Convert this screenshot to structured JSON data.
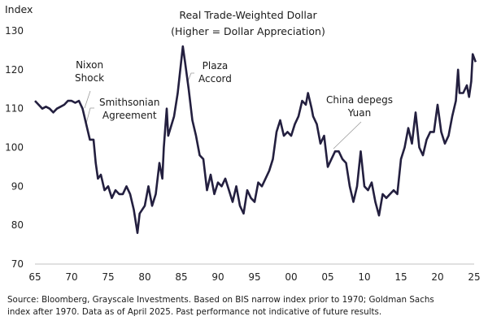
{
  "chart_data": {
    "type": "line",
    "title": "Real Trade-Weighted Dollar",
    "subtitle": "(Higher = Dollar Appreciation)",
    "ylabel": "Index",
    "xlabel": "",
    "ylim": [
      70,
      130
    ],
    "xlim": [
      1965,
      2025
    ],
    "yticks": [
      "70",
      "80",
      "90",
      "100",
      "110",
      "120",
      "130"
    ],
    "xticks": [
      "65",
      "70",
      "75",
      "80",
      "85",
      "90",
      "95",
      "00",
      "05",
      "10",
      "15",
      "20",
      "25"
    ],
    "grid": false,
    "line_color": "#231f3f",
    "series": [
      {
        "points": [
          [
            1965.0,
            112
          ],
          [
            1965.5,
            111
          ],
          [
            1966.0,
            110
          ],
          [
            1966.5,
            110.5
          ],
          [
            1967.0,
            110
          ],
          [
            1967.5,
            109
          ],
          [
            1968.0,
            110
          ],
          [
            1968.5,
            110.5
          ],
          [
            1969.0,
            111
          ],
          [
            1969.5,
            112
          ],
          [
            1970.0,
            112
          ],
          [
            1970.5,
            111.5
          ],
          [
            1971.0,
            112
          ],
          [
            1971.5,
            110
          ],
          [
            1972.0,
            106
          ],
          [
            1972.5,
            102
          ],
          [
            1973.0,
            102
          ],
          [
            1973.3,
            96
          ],
          [
            1973.6,
            92
          ],
          [
            1974.0,
            93
          ],
          [
            1974.5,
            89
          ],
          [
            1975.0,
            90
          ],
          [
            1975.5,
            87
          ],
          [
            1976.0,
            89
          ],
          [
            1976.5,
            88
          ],
          [
            1977.0,
            88
          ],
          [
            1977.5,
            90
          ],
          [
            1978.0,
            88
          ],
          [
            1978.5,
            84
          ],
          [
            1979.0,
            78
          ],
          [
            1979.3,
            83
          ],
          [
            1980.0,
            85
          ],
          [
            1980.5,
            90
          ],
          [
            1981.0,
            85
          ],
          [
            1981.5,
            88
          ],
          [
            1982.0,
            96
          ],
          [
            1982.4,
            92
          ],
          [
            1982.6,
            100
          ],
          [
            1983.0,
            110
          ],
          [
            1983.2,
            103
          ],
          [
            1984.0,
            108
          ],
          [
            1984.5,
            114
          ],
          [
            1985.2,
            126
          ],
          [
            1985.5,
            122
          ],
          [
            1986.0,
            115
          ],
          [
            1986.5,
            107
          ],
          [
            1987.0,
            103
          ],
          [
            1987.5,
            98
          ],
          [
            1988.0,
            97
          ],
          [
            1988.5,
            89
          ],
          [
            1989.0,
            93
          ],
          [
            1989.5,
            88
          ],
          [
            1990.0,
            91
          ],
          [
            1990.5,
            90
          ],
          [
            1991.0,
            92
          ],
          [
            1991.5,
            89
          ],
          [
            1992.0,
            86
          ],
          [
            1992.5,
            90
          ],
          [
            1993.0,
            85
          ],
          [
            1993.5,
            83
          ],
          [
            1994.0,
            89
          ],
          [
            1994.5,
            87
          ],
          [
            1995.0,
            86
          ],
          [
            1995.5,
            91
          ],
          [
            1996.0,
            90
          ],
          [
            1996.5,
            92
          ],
          [
            1997.0,
            94
          ],
          [
            1997.5,
            97
          ],
          [
            1998.0,
            104
          ],
          [
            1998.5,
            107
          ],
          [
            1999.0,
            103
          ],
          [
            1999.5,
            104
          ],
          [
            2000.0,
            103
          ],
          [
            2000.5,
            106
          ],
          [
            2001.0,
            108
          ],
          [
            2001.5,
            112
          ],
          [
            2002.0,
            111
          ],
          [
            2002.3,
            114
          ],
          [
            2002.8,
            110
          ],
          [
            2003.0,
            108
          ],
          [
            2003.5,
            106
          ],
          [
            2004.0,
            101
          ],
          [
            2004.5,
            103
          ],
          [
            2005.0,
            95
          ],
          [
            2005.5,
            97
          ],
          [
            2006.0,
            99
          ],
          [
            2006.5,
            99
          ],
          [
            2007.0,
            97
          ],
          [
            2007.5,
            96
          ],
          [
            2008.0,
            90
          ],
          [
            2008.5,
            86
          ],
          [
            2009.0,
            90
          ],
          [
            2009.5,
            99
          ],
          [
            2010.0,
            90
          ],
          [
            2010.5,
            89
          ],
          [
            2011.0,
            91
          ],
          [
            2011.5,
            86
          ],
          [
            2012.0,
            82.5
          ],
          [
            2012.5,
            88
          ],
          [
            2013.0,
            87
          ],
          [
            2013.5,
            88
          ],
          [
            2014.0,
            89
          ],
          [
            2014.5,
            88
          ],
          [
            2015.0,
            97
          ],
          [
            2015.5,
            100
          ],
          [
            2016.0,
            105
          ],
          [
            2016.5,
            101
          ],
          [
            2017.0,
            109
          ],
          [
            2017.5,
            100
          ],
          [
            2018.0,
            98
          ],
          [
            2018.5,
            102
          ],
          [
            2019.0,
            104
          ],
          [
            2019.5,
            104
          ],
          [
            2020.0,
            111
          ],
          [
            2020.5,
            104
          ],
          [
            2021.0,
            101
          ],
          [
            2021.5,
            103
          ],
          [
            2022.0,
            108
          ],
          [
            2022.5,
            112
          ],
          [
            2022.8,
            120
          ],
          [
            2023.0,
            114
          ],
          [
            2023.5,
            114
          ],
          [
            2024.0,
            116
          ],
          [
            2024.3,
            113
          ],
          [
            2024.6,
            117
          ],
          [
            2024.8,
            124
          ],
          [
            2025.2,
            122
          ]
        ]
      }
    ],
    "annotations": [
      {
        "text": [
          "Nixon",
          "Shock"
        ],
        "x": 1971.5,
        "y": 110
      },
      {
        "text": [
          "Smithsonian",
          "Agreement"
        ],
        "x": 1971.8,
        "y": 105
      },
      {
        "text": [
          "Plaza",
          "Accord"
        ],
        "x": 1985.9,
        "y": 117
      },
      {
        "text": [
          "China depegs",
          "Yuan"
        ],
        "x": 2005.5,
        "y": 97
      }
    ]
  },
  "source": {
    "line1": "Source: Bloomberg, Grayscale Investments. Based on BIS narrow index prior to 1970; Goldman Sachs",
    "line2": "index after 1970. Data as of April 2025. Past performance not indicative of future results."
  }
}
